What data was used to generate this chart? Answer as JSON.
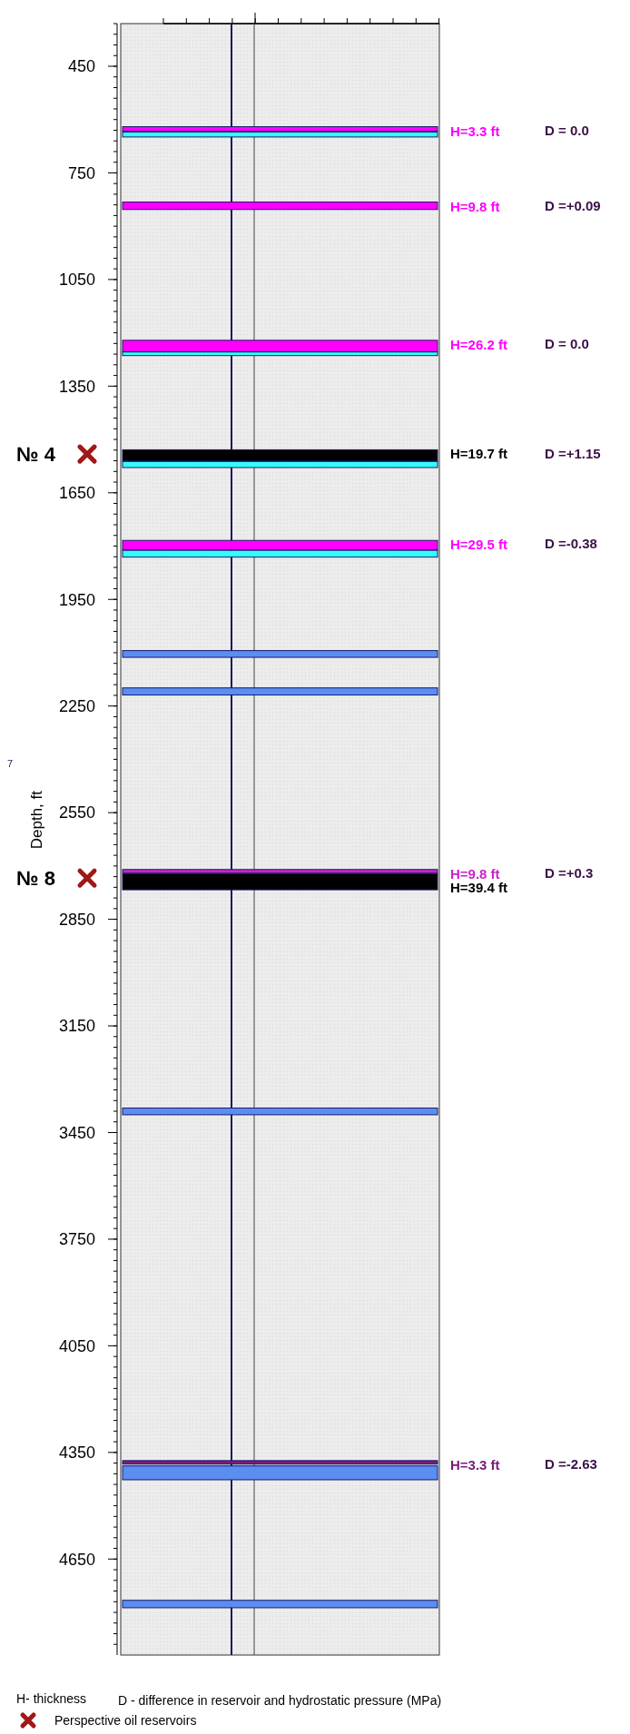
{
  "chart_data": {
    "type": "bar",
    "ylabel": "Depth, ft",
    "categories": [
      null
    ],
    "ylim": [
      4920,
      330
    ],
    "yticks": [
      450,
      750,
      1050,
      1350,
      1650,
      1950,
      2250,
      2550,
      2850,
      3150,
      3450,
      3750,
      4050,
      4350,
      4650
    ],
    "tick_labels": "y",
    "series": [
      {
        "color": "#ff00ff",
        "base": [
          620
        ],
        "values": [
          13
        ]
      },
      {
        "color": "#33ffff",
        "base": [
          635
        ],
        "values": [
          14
        ]
      },
      {
        "color": "#ff00ff",
        "base": [
          832
        ],
        "values": [
          21
        ]
      },
      {
        "color": "#ff00ff",
        "base": [
          1221
        ],
        "values": [
          32
        ]
      },
      {
        "color": "#33ffff",
        "base": [
          1254
        ],
        "values": [
          10
        ]
      },
      {
        "color": "#000000",
        "base": [
          1529
        ],
        "values": [
          32
        ]
      },
      {
        "color": "#33ffff",
        "base": [
          1562
        ],
        "values": [
          17
        ]
      },
      {
        "color": "#ff00ff",
        "base": [
          1784
        ],
        "values": [
          27
        ]
      },
      {
        "color": "#33ffff",
        "base": [
          1812
        ],
        "values": [
          19
        ]
      },
      {
        "color": "#5a8ef0",
        "base": [
          2094
        ],
        "values": [
          19
        ]
      },
      {
        "color": "#5a8ef0",
        "base": [
          2199
        ],
        "values": [
          20
        ]
      },
      {
        "color": "#cc22cc",
        "base": [
          2710
        ],
        "values": [
          10
        ]
      },
      {
        "color": "#000000",
        "base": [
          2722
        ],
        "values": [
          45
        ]
      },
      {
        "color": "#5a8ef0",
        "base": [
          3381
        ],
        "values": [
          19
        ]
      },
      {
        "color": "#7a1a7a",
        "base": [
          4373
        ],
        "values": [
          10
        ]
      },
      {
        "color": "#5a8ef0",
        "base": [
          4388
        ],
        "values": [
          39
        ]
      },
      {
        "color": "#5a8ef0",
        "base": [
          4766
        ],
        "values": [
          21
        ]
      }
    ],
    "annotations": [
      "H=3.3 ft",
      "H=9.8 ft",
      "H=26.2 ft",
      "H=19.7 ft",
      "H=29.5 ft",
      "H=9.8 ft",
      "H=39.4 ft",
      "H=3.3 ft",
      "D = 0.0",
      "D =+0.09",
      "D = 0.0",
      "D =+1.15",
      "D =-0.38",
      "D =+0.3",
      "D =-2.63",
      "№ 4",
      "№ 8",
      "7",
      "H-  thickness",
      "D - difference in reservoir and hydrostatic pressure (MPa)",
      "Perspective oil reservoirs"
    ]
  }
}
